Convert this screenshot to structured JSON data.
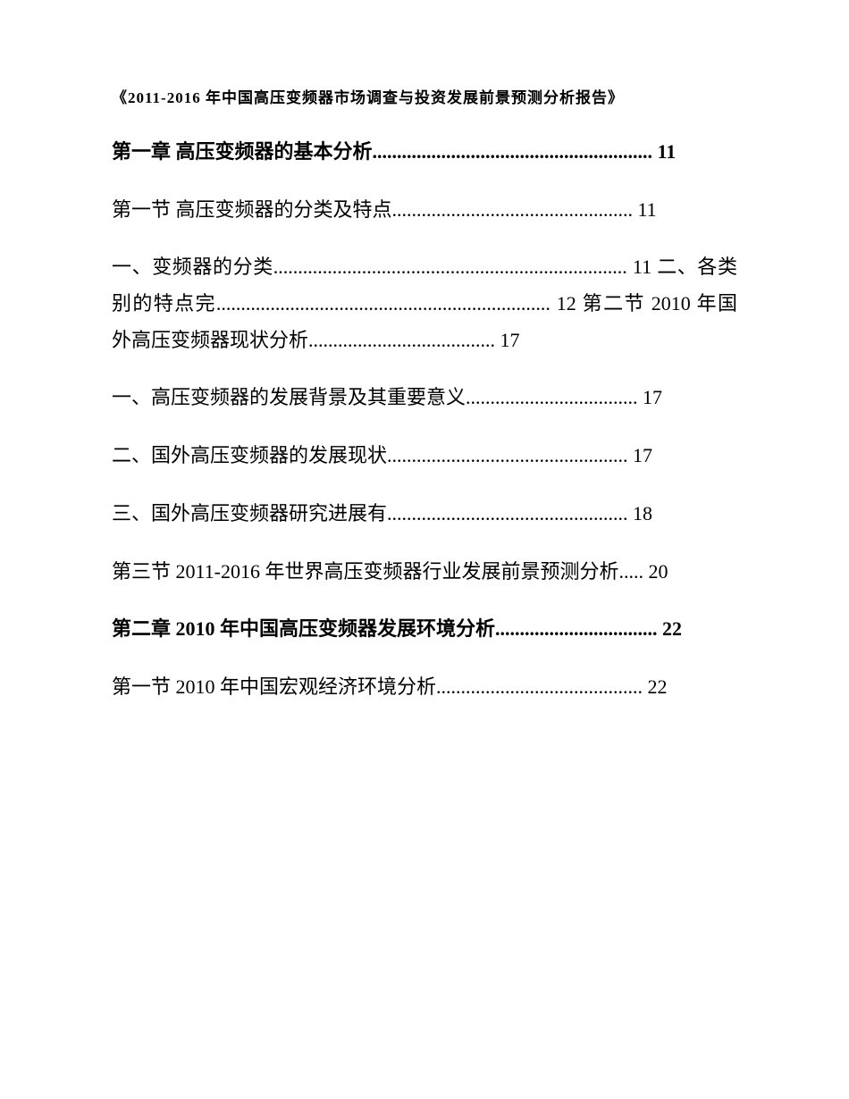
{
  "document_title": "《2011-2016 年中国高压变频器市场调查与投资发展前景预测分析报告》",
  "entries": [
    {
      "text": "第一章 高压变频器的基本分析......................................................... 11",
      "bold": true
    },
    {
      "text": "第一节 高压变频器的分类及特点................................................. 11",
      "bold": false
    },
    {
      "text": "一、变频器的分类........................................................................ 11 二、各类别的特点完.................................................................... 12 第二节 2010 年国外高压变频器现状分析...................................... 17",
      "bold": false
    },
    {
      "text": "一、高压变频器的发展背景及其重要意义................................... 17",
      "bold": false
    },
    {
      "text": "二、国外高压变频器的发展现状................................................. 17",
      "bold": false
    },
    {
      "text": "三、国外高压变频器研究进展有................................................. 18",
      "bold": false
    },
    {
      "text": "第三节 2011-2016 年世界高压变频器行业发展前景预测分析..... 20",
      "bold": false
    },
    {
      "text": "第二章 2010 年中国高压变频器发展环境分析................................. 22",
      "bold": true
    },
    {
      "text": "第一节 2010 年中国宏观经济环境分析.......................................... 22",
      "bold": false
    }
  ]
}
